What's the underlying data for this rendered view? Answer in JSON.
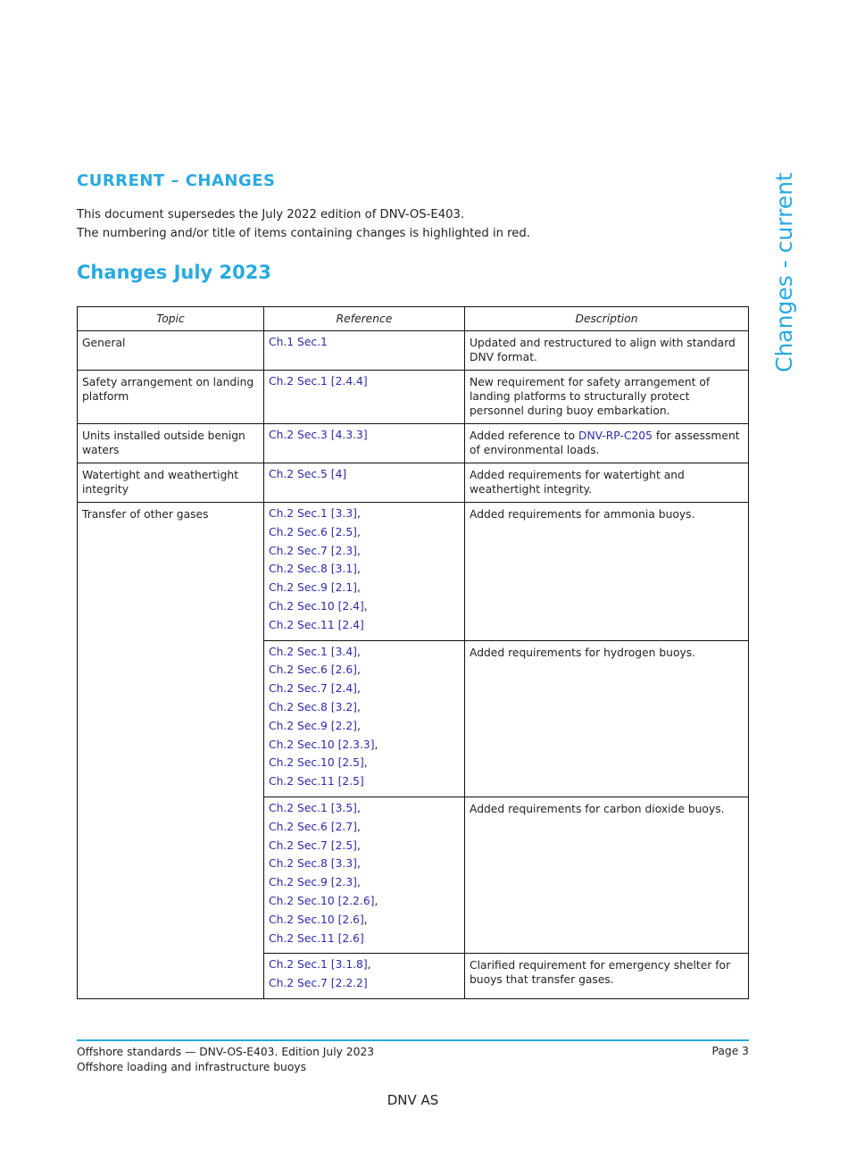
{
  "heading": "CURRENT – CHANGES",
  "intro": [
    "This document supersedes the July 2022 edition of DNV-OS-E403.",
    "The numbering and/or title of items containing changes is highlighted in red."
  ],
  "subheading": "Changes July 2023",
  "side_label": "Changes - current",
  "table": {
    "headers": [
      "Topic",
      "Reference",
      "Description"
    ],
    "rows": [
      {
        "topic": "General",
        "refs": [
          "Ch.1 Sec.1"
        ],
        "desc": [
          {
            "t": "Updated and restructured to align with standard DNV format."
          }
        ]
      },
      {
        "topic": "Safety arrangement on landing platform",
        "refs": [
          "Ch.2 Sec.1 [2.4.4]"
        ],
        "desc": [
          {
            "t": "New requirement for safety arrangement of landing platforms to structurally protect personnel during buoy embarkation."
          }
        ]
      },
      {
        "topic": "Units installed outside benign waters",
        "refs": [
          "Ch.2 Sec.3 [4.3.3]"
        ],
        "desc": [
          {
            "t": "Added reference to "
          },
          {
            "t": "DNV-RP-C205",
            "link": true
          },
          {
            "t": " for assessment of environmental loads."
          }
        ]
      },
      {
        "topic": "Watertight and weathertight integrity",
        "refs": [
          "Ch.2 Sec.5 [4]"
        ],
        "desc": [
          {
            "t": "Added requirements for watertight and weathertight integrity."
          }
        ]
      },
      {
        "topic": "Transfer of other gases",
        "span": 4,
        "refs": [
          "Ch.2 Sec.1 [3.3]",
          "Ch.2 Sec.6 [2.5]",
          "Ch.2 Sec.7 [2.3]",
          "Ch.2 Sec.8 [3.1]",
          "Ch.2 Sec.9 [2.1]",
          "Ch.2 Sec.10 [2.4]",
          "Ch.2 Sec.11 [2.4]"
        ],
        "desc": [
          {
            "t": "Added requirements for ammonia buoys."
          }
        ]
      },
      {
        "refs": [
          "Ch.2 Sec.1 [3.4]",
          "Ch.2 Sec.6 [2.6]",
          "Ch.2 Sec.7 [2.4]",
          "Ch.2 Sec.8 [3.2]",
          "Ch.2 Sec.9 [2.2]",
          "Ch.2 Sec.10 [2.3.3]",
          "Ch.2 Sec.10 [2.5]",
          "Ch.2 Sec.11 [2.5]"
        ],
        "desc": [
          {
            "t": "Added requirements for hydrogen buoys."
          }
        ]
      },
      {
        "refs": [
          "Ch.2 Sec.1 [3.5]",
          "Ch.2 Sec.6 [2.7]",
          "Ch.2 Sec.7 [2.5]",
          "Ch.2 Sec.8 [3.3]",
          "Ch.2 Sec.9 [2.3]",
          "Ch.2 Sec.10 [2.2.6]",
          "Ch.2 Sec.10 [2.6]",
          "Ch.2 Sec.11 [2.6]"
        ],
        "desc": [
          {
            "t": "Added requirements for carbon dioxide buoys."
          }
        ]
      },
      {
        "refs": [
          "Ch.2 Sec.1 [3.1.8]",
          "Ch.2 Sec.7 [2.2.2]"
        ],
        "desc": [
          {
            "t": "Clarified requirement for emergency shelter for buoys that transfer gases."
          }
        ]
      }
    ]
  },
  "footer": {
    "line1": "Offshore standards — DNV-OS-E403. Edition July 2023",
    "line2": "Offshore loading and infrastructure buoys",
    "page": "Page 3",
    "company": "DNV AS"
  },
  "colors": {
    "accent": "#29a9e0",
    "link": "#2b2ba8"
  }
}
